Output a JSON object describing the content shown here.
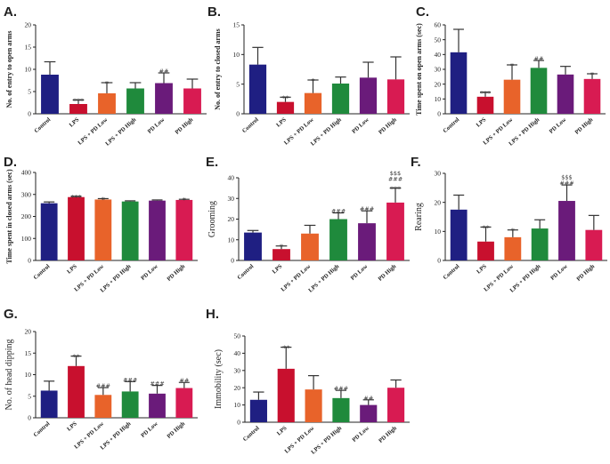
{
  "figure": {
    "colors": [
      "#1f1f82",
      "#c8102e",
      "#e8632a",
      "#1f8a3c",
      "#6a1b7a",
      "#d81b52"
    ]
  },
  "chart_data": [
    {
      "id": "A",
      "letter": "A.",
      "type": "bar",
      "ylabel": "No. of entry to open arms",
      "ylabel_style": "bold",
      "ylim": [
        0,
        20
      ],
      "yticks": [
        0,
        5,
        10,
        15,
        20
      ],
      "categories": [
        "Control",
        "LPS",
        "LPS + PD Low",
        "LPS + PD High",
        "PD Low",
        "PD High"
      ],
      "values": [
        8.8,
        2.2,
        4.6,
        5.7,
        6.9,
        5.7
      ],
      "errors": [
        2.9,
        0.9,
        2.4,
        1.3,
        2.3,
        2.1
      ],
      "stars": [
        "",
        "***",
        "*",
        "",
        "",
        ""
      ],
      "hashes": [
        "",
        "",
        "",
        "",
        "##",
        ""
      ],
      "dollars": [
        "",
        "",
        "",
        "",
        "",
        ""
      ]
    },
    {
      "id": "B",
      "letter": "B.",
      "type": "bar",
      "ylabel": "No. of entry to closed arms",
      "ylabel_style": "bold",
      "ylim": [
        0,
        15
      ],
      "yticks": [
        0,
        5,
        10,
        15
      ],
      "categories": [
        "Control",
        "LPS",
        "LPS + PD Low",
        "LPS + PD High",
        "PD Low",
        "PD High"
      ],
      "values": [
        8.3,
        2.0,
        3.5,
        5.1,
        6.1,
        5.8
      ],
      "errors": [
        2.9,
        0.8,
        2.2,
        1.1,
        2.6,
        3.8
      ],
      "stars": [
        "",
        "**",
        "*",
        "",
        "",
        ""
      ],
      "hashes": [
        "",
        "",
        "",
        "",
        "",
        ""
      ],
      "dollars": [
        "",
        "",
        "",
        "",
        "",
        ""
      ]
    },
    {
      "id": "C",
      "letter": "C.",
      "type": "bar",
      "ylabel": "Time spent on open arms (sec)",
      "ylabel_style": "bold",
      "ylim": [
        0,
        60
      ],
      "yticks": [
        0,
        10,
        20,
        30,
        40,
        50,
        60
      ],
      "categories": [
        "Control",
        "LPS",
        "LPS + PD Low",
        "LPS + PD High",
        "PD Low",
        "PD High"
      ],
      "values": [
        41.5,
        11.5,
        23.0,
        31.0,
        26.5,
        23.5
      ],
      "errors": [
        15.5,
        3.0,
        10.0,
        5.0,
        5.5,
        3.5
      ],
      "stars": [
        "",
        "***",
        "*",
        "",
        "",
        "*"
      ],
      "hashes": [
        "",
        "",
        "",
        "##",
        "",
        ""
      ],
      "dollars": [
        "",
        "",
        "",
        "",
        "",
        ""
      ]
    },
    {
      "id": "D",
      "letter": "D.",
      "type": "bar",
      "ylabel": "Time spent in closed arms (sec)",
      "ylabel_style": "bold",
      "ylim": [
        0,
        400
      ],
      "yticks": [
        0,
        100,
        200,
        300,
        400
      ],
      "categories": [
        "Control",
        "LPS",
        "LPS + PD Low",
        "LPS + PD High",
        "PD Low",
        "PD High"
      ],
      "values": [
        260,
        288,
        277,
        268,
        272,
        275
      ],
      "errors": [
        6,
        3,
        4,
        3,
        3,
        3
      ],
      "stars": [
        "",
        "***",
        "*",
        "",
        "",
        "*"
      ],
      "hashes": [
        "",
        "",
        "",
        "",
        "",
        ""
      ],
      "dollars": [
        "",
        "",
        "",
        "",
        "",
        ""
      ]
    },
    {
      "id": "E",
      "letter": "E.",
      "type": "bar",
      "ylabel": "Grooming",
      "ylabel_style": "regular",
      "ylim": [
        0,
        40
      ],
      "yticks": [
        0,
        10,
        20,
        30,
        40
      ],
      "categories": [
        "Control",
        "LPS",
        "LPS + PD Low",
        "LPS + PD High",
        "PD Low",
        "PD High"
      ],
      "values": [
        13.5,
        5.5,
        13.0,
        20.0,
        18.0,
        28.0
      ],
      "errors": [
        1.0,
        1.5,
        4.0,
        3.0,
        6.0,
        7.0
      ],
      "stars": [
        "",
        "*",
        "",
        "",
        "",
        "***"
      ],
      "hashes": [
        "",
        "",
        "",
        "###",
        "###",
        "###"
      ],
      "dollars": [
        "",
        "",
        "",
        "",
        "",
        "$$$"
      ]
    },
    {
      "id": "F",
      "letter": "F.",
      "type": "bar",
      "ylabel": "Rearing",
      "ylabel_style": "regular",
      "ylim": [
        0,
        30
      ],
      "yticks": [
        0,
        10,
        20,
        30
      ],
      "categories": [
        "Control",
        "LPS",
        "LPS + PD Low",
        "LPS + PD High",
        "PD Low",
        "PD High"
      ],
      "values": [
        17.5,
        6.5,
        8.0,
        11.0,
        20.5,
        10.5
      ],
      "errors": [
        5.0,
        5.0,
        2.5,
        3.0,
        5.5,
        5.0
      ],
      "stars": [
        "",
        "**",
        "*",
        "",
        "",
        ""
      ],
      "hashes": [
        "",
        "",
        "",
        "",
        "###",
        ""
      ],
      "dollars": [
        "",
        "",
        "",
        "",
        "$$$",
        ""
      ]
    },
    {
      "id": "G",
      "letter": "G.",
      "type": "bar",
      "ylabel": "No. of head dipping",
      "ylabel_style": "regular",
      "ylim": [
        0,
        20
      ],
      "yticks": [
        0,
        5,
        10,
        15,
        20
      ],
      "categories": [
        "Control",
        "LPS",
        "LPS + PD Low",
        "LPS + PD High",
        "PD Low",
        "PD High"
      ],
      "values": [
        6.3,
        12.0,
        5.3,
        6.1,
        5.6,
        6.9
      ],
      "errors": [
        2.2,
        2.3,
        1.7,
        2.3,
        1.9,
        1.3
      ],
      "stars": [
        "",
        "**",
        "",
        "",
        "",
        ""
      ],
      "hashes": [
        "",
        "",
        "###",
        "###",
        "###",
        "##"
      ],
      "dollars": [
        "",
        "",
        "",
        "",
        "",
        ""
      ]
    },
    {
      "id": "H",
      "letter": "H.",
      "type": "bar",
      "ylabel": "Immobility (sec)",
      "ylabel_style": "regular",
      "ylim": [
        0,
        50
      ],
      "yticks": [
        0,
        10,
        20,
        30,
        40,
        50
      ],
      "categories": [
        "Control",
        "LPS",
        "LPS + PD Low",
        "LPS + PD High",
        "PD Low",
        "PD High"
      ],
      "values": [
        13.0,
        31.0,
        19.0,
        14.0,
        10.0,
        20.0
      ],
      "errors": [
        4.5,
        12.5,
        8.0,
        4.5,
        3.0,
        4.5
      ],
      "stars": [
        "",
        "**",
        "",
        "",
        "",
        ""
      ],
      "hashes": [
        "",
        "",
        "",
        "###",
        "##",
        ""
      ],
      "dollars": [
        "",
        "",
        "",
        "",
        "",
        ""
      ]
    }
  ]
}
